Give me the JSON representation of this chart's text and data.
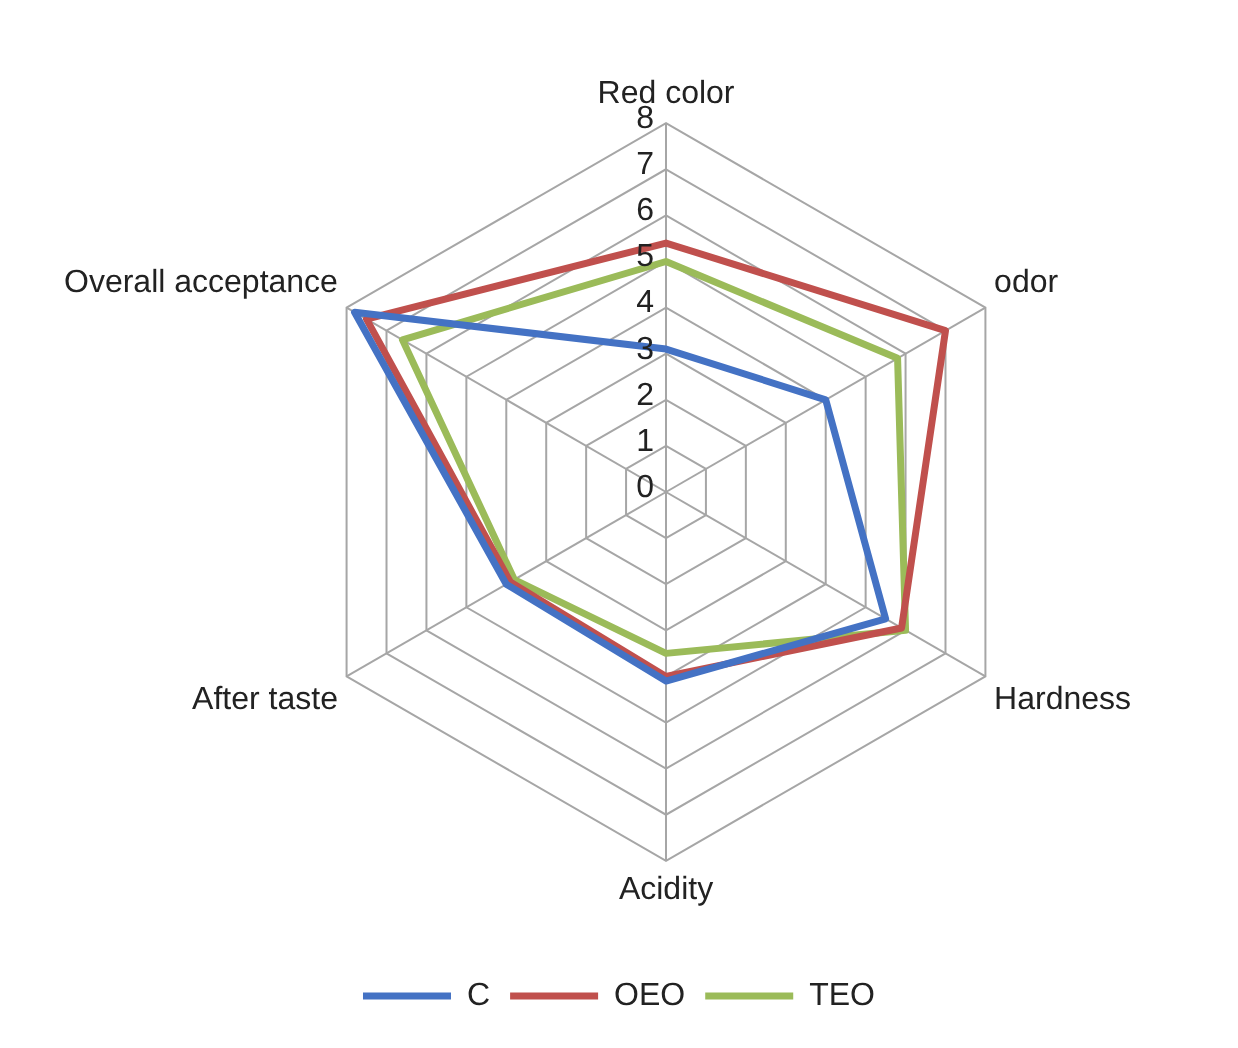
{
  "chart_data": {
    "type": "radar",
    "categories": [
      "Red color",
      "odor",
      "Hardness",
      "Acidity",
      "After taste",
      "Overall acceptance"
    ],
    "series": [
      {
        "name": "C",
        "color": "#4472c4",
        "values": [
          3.1,
          4.0,
          5.5,
          4.1,
          4.0,
          7.8
        ]
      },
      {
        "name": "OEO",
        "color": "#c0504d",
        "values": [
          5.4,
          7.0,
          5.9,
          4.0,
          3.9,
          7.5
        ]
      },
      {
        "name": "TEO",
        "color": "#9bbb59",
        "values": [
          5.0,
          5.8,
          6.0,
          3.5,
          3.8,
          6.6
        ]
      }
    ],
    "ylim": [
      0,
      8
    ],
    "yticks": [
      0,
      1,
      2,
      3,
      4,
      5,
      6,
      7,
      8
    ],
    "grid": true,
    "legend": "bottom",
    "marker": "none"
  }
}
